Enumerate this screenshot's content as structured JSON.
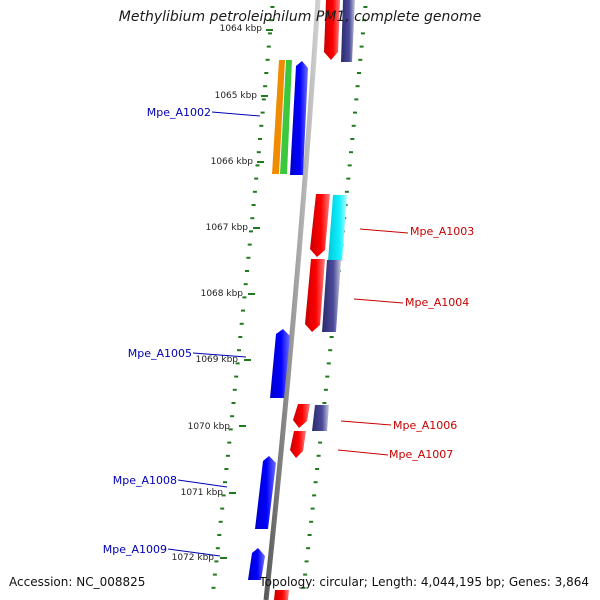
{
  "title": "Methylibium petroleiphilum PM1, complete genome",
  "footer": {
    "accession": "Accession: NC_008825",
    "summary": "Topology: circular; Length: 4,044,195 bp; Genes: 3,864"
  },
  "colors": {
    "backbone": "#8a8a8a",
    "tick": "#1f7a1f",
    "forward_label": "#0000b4",
    "reverse_label": "#c80000",
    "cds_blue": "#0000e6",
    "cds_red": "#e60000",
    "cds_navy": "#3c3c8c",
    "cds_cyan": "#00e6f0",
    "cds_orange": "#f08c00",
    "cds_green": "#3cc83c"
  },
  "kbp_ticks": [
    "1064 kbp",
    "1065 kbp",
    "1066 kbp",
    "1067 kbp",
    "1068 kbp",
    "1069 kbp",
    "1070 kbp",
    "1071 kbp",
    "1072 kbp"
  ],
  "gene_labels": [
    {
      "name": "Mpe_A1002",
      "strand": "forward"
    },
    {
      "name": "Mpe_A1003",
      "strand": "reverse"
    },
    {
      "name": "Mpe_A1004",
      "strand": "reverse"
    },
    {
      "name": "Mpe_A1005",
      "strand": "forward"
    },
    {
      "name": "Mpe_A1006",
      "strand": "reverse"
    },
    {
      "name": "Mpe_A1007",
      "strand": "reverse"
    },
    {
      "name": "Mpe_A1008",
      "strand": "forward"
    },
    {
      "name": "Mpe_A1009",
      "strand": "forward"
    }
  ]
}
